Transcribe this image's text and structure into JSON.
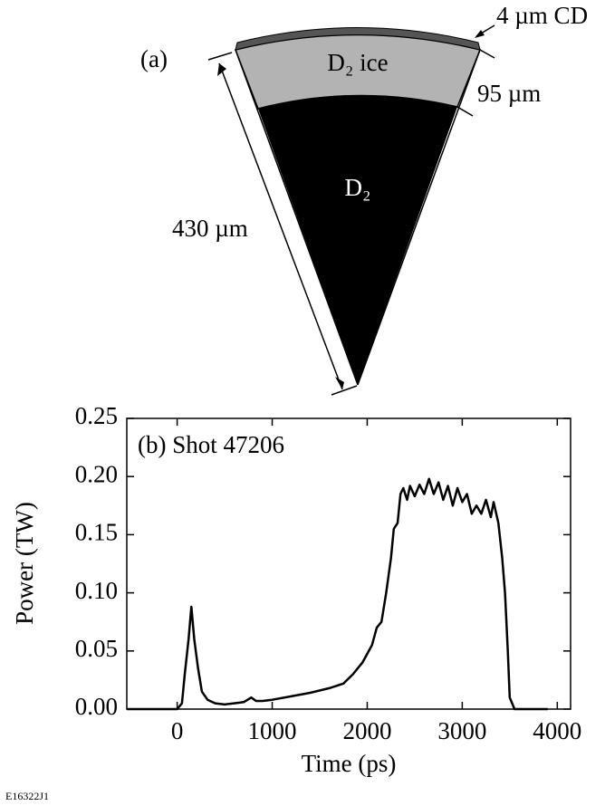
{
  "diagram": {
    "panel_label": "(a)",
    "ice_label": "D₂ ice",
    "gas_label": "D₂",
    "radius_label": "430 µm",
    "ice_thickness_label": "95 µm",
    "shell_label": "4 µm CD"
  },
  "figure_id": "E16322J1",
  "chart_data": {
    "type": "line",
    "annotation": "(b) Shot 47206",
    "x_label": "Time (ps)",
    "y_label": "Power (TW)",
    "color": "#000000",
    "x": [
      -530,
      0,
      50,
      80,
      120,
      150,
      180,
      220,
      260,
      320,
      400,
      500,
      600,
      700,
      780,
      830,
      900,
      1000,
      1200,
      1400,
      1600,
      1750,
      1850,
      1950,
      2050,
      2100,
      2150,
      2200,
      2250,
      2280,
      2320,
      2350,
      2380,
      2420,
      2450,
      2500,
      2550,
      2600,
      2650,
      2700,
      2750,
      2800,
      2850,
      2900,
      2950,
      3000,
      3050,
      3100,
      3150,
      3200,
      3250,
      3300,
      3330,
      3380,
      3420,
      3450,
      3480,
      3500,
      3550,
      3900
    ],
    "values": [
      0,
      0,
      0.005,
      0.03,
      0.06,
      0.088,
      0.06,
      0.035,
      0.015,
      0.008,
      0.005,
      0.004,
      0.005,
      0.006,
      0.01,
      0.007,
      0.007,
      0.008,
      0.011,
      0.014,
      0.018,
      0.022,
      0.03,
      0.04,
      0.055,
      0.07,
      0.075,
      0.1,
      0.13,
      0.155,
      0.16,
      0.185,
      0.19,
      0.18,
      0.192,
      0.183,
      0.193,
      0.185,
      0.198,
      0.185,
      0.195,
      0.18,
      0.192,
      0.175,
      0.19,
      0.178,
      0.185,
      0.168,
      0.175,
      0.168,
      0.18,
      0.165,
      0.178,
      0.16,
      0.13,
      0.1,
      0.05,
      0.01,
      0,
      0
    ],
    "xlim": [
      -530,
      4140
    ],
    "ylim": [
      0,
      0.25
    ],
    "xticks": [
      0,
      1000,
      2000,
      3000,
      4000
    ],
    "yticks": [
      {
        "value": 0,
        "label": "0.00"
      },
      {
        "value": 0.05,
        "label": "0.05"
      },
      {
        "value": 0.1,
        "label": "0.10"
      },
      {
        "value": 0.15,
        "label": "0.15"
      },
      {
        "value": 0.2,
        "label": "0.20"
      },
      {
        "value": 0.25,
        "label": "0.25"
      }
    ]
  }
}
